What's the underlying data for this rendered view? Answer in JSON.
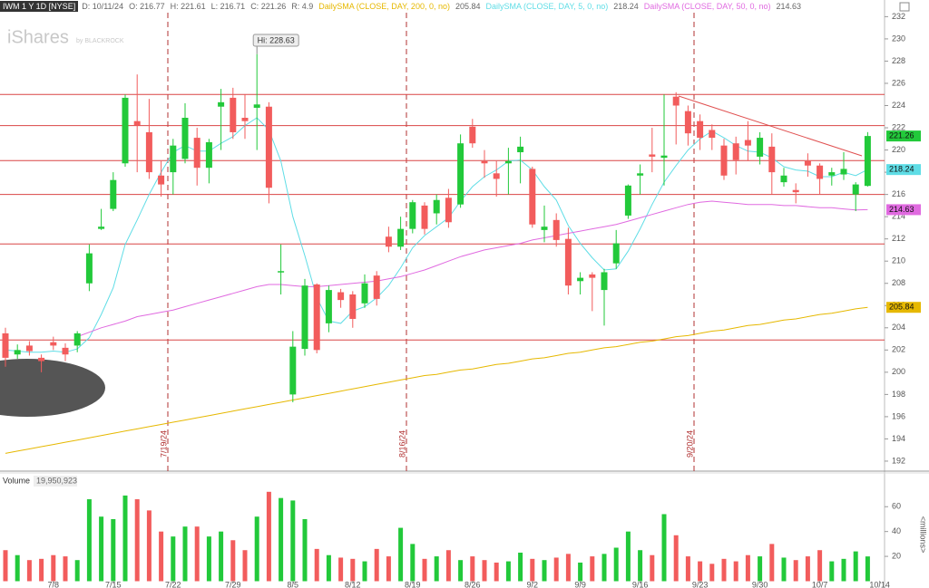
{
  "chart_data": {
    "type": "candlestick",
    "header": {
      "symbol": "IWM 1 Y 1D [NYSE]",
      "items": [
        "D: 10/11/24",
        "O: 216.77",
        "H: 221.61",
        "L: 216.71",
        "C: 221.26",
        "R: 4.9"
      ]
    },
    "watermark": [
      "iShares",
      "by BLACKROCK"
    ],
    "categories": [
      null,
      null,
      null,
      null,
      "7/8",
      null,
      null,
      null,
      null,
      "7/15",
      null,
      null,
      null,
      null,
      "7/22",
      null,
      null,
      null,
      null,
      "7/29",
      null,
      null,
      null,
      null,
      "8/5",
      null,
      null,
      null,
      null,
      "8/12",
      null,
      null,
      null,
      null,
      "8/19",
      null,
      null,
      null,
      null,
      "8/26",
      null,
      null,
      null,
      null,
      "9/2",
      null,
      null,
      null,
      "9/9",
      null,
      null,
      null,
      null,
      "9/16",
      null,
      null,
      null,
      null,
      "9/23",
      null,
      null,
      null,
      null,
      "9/30",
      null,
      null,
      null,
      null,
      "10/7",
      null,
      null,
      null,
      null,
      "10/14"
    ],
    "open": [
      203.5,
      201.6,
      202.4,
      201.3,
      202.7,
      202.2,
      202.4,
      208.0,
      212.9,
      214.7,
      218.8,
      222.6,
      221.6,
      217.7,
      218.0,
      219.2,
      221.1,
      218.4,
      223.9,
      224.7,
      222.9,
      223.8,
      223.9,
      209.0,
      198.0,
      202.1,
      207.9,
      204.4,
      207.2,
      207.0,
      206.2,
      208.7,
      212.2,
      211.3,
      212.9,
      215.0,
      214.3,
      215.7,
      215.1,
      222.1,
      219.0,
      217.9,
      218.8,
      219.8,
      218.3,
      212.8,
      213.7,
      212.0,
      208.2,
      208.8,
      207.4,
      209.8,
      214.1,
      217.7,
      219.6,
      219.3,
      224.8,
      223.5,
      222.6,
      221.8,
      220.4,
      220.6,
      220.9,
      219.4,
      220.3,
      217.1,
      216.4,
      219.0,
      218.6,
      217.7,
      217.8,
      216.0,
      216.77,
      null
    ],
    "high": [
      204.0,
      202.5,
      202.8,
      201.6,
      203.2,
      202.6,
      203.7,
      211.5,
      214.7,
      218.0,
      225.0,
      226.8,
      224.6,
      219.0,
      221.0,
      224.2,
      222.0,
      221.0,
      225.5,
      225.6,
      225.0,
      228.63,
      224.3,
      211.5,
      203.7,
      208.4,
      208.0,
      207.8,
      207.5,
      207.3,
      208.8,
      209.1,
      213.1,
      214.0,
      215.5,
      215.3,
      216.0,
      216.5,
      221.4,
      222.8,
      220.0,
      219.0,
      220.2,
      221.2,
      218.5,
      215.0,
      214.3,
      213.0,
      209.0,
      209.0,
      209.3,
      212.8,
      216.9,
      218.7,
      222.0,
      225.0,
      225.2,
      224.0,
      223.2,
      222.3,
      221.0,
      221.2,
      222.6,
      221.6,
      221.5,
      218.4,
      217.0,
      219.7,
      218.8,
      218.4,
      219.8,
      217.1,
      221.61,
      null
    ],
    "low": [
      200.5,
      201.2,
      201.5,
      200.0,
      202.0,
      201.0,
      201.8,
      207.3,
      212.8,
      214.5,
      218.5,
      218.0,
      217.4,
      215.8,
      216.0,
      218.8,
      216.8,
      217.0,
      220.0,
      221.0,
      221.0,
      220.0,
      215.2,
      207.0,
      197.3,
      201.5,
      201.7,
      203.6,
      205.8,
      204.0,
      205.8,
      206.0,
      210.8,
      211.0,
      212.5,
      212.4,
      213.3,
      213.0,
      214.8,
      220.2,
      217.5,
      215.8,
      216.0,
      217.0,
      213.0,
      211.7,
      211.3,
      207.0,
      207.0,
      205.5,
      204.2,
      209.3,
      213.8,
      216.0,
      218.0,
      216.8,
      220.5,
      220.4,
      220.0,
      220.0,
      217.3,
      217.8,
      219.0,
      218.7,
      216.0,
      216.7,
      215.2,
      217.6,
      216.0,
      216.8,
      217.3,
      214.5,
      216.71,
      null
    ],
    "close": [
      201.3,
      202.0,
      201.9,
      201.0,
      202.4,
      201.6,
      203.5,
      210.7,
      213.1,
      217.3,
      224.7,
      222.2,
      218.0,
      216.9,
      220.4,
      222.9,
      218.4,
      220.7,
      224.3,
      221.6,
      222.6,
      224.1,
      216.6,
      209.1,
      202.3,
      207.8,
      202.0,
      207.4,
      206.5,
      204.8,
      208.0,
      206.6,
      211.3,
      212.9,
      215.3,
      212.9,
      215.5,
      213.5,
      220.6,
      220.6,
      218.8,
      217.4,
      219.0,
      220.3,
      213.3,
      213.1,
      211.9,
      207.8,
      208.5,
      208.5,
      209.0,
      211.6,
      216.8,
      217.9,
      219.4,
      219.5,
      224.0,
      221.5,
      221.1,
      221.1,
      217.7,
      219.1,
      220.4,
      221.1,
      218.0,
      217.7,
      216.2,
      218.6,
      217.4,
      218.0,
      218.3,
      216.9,
      221.26,
      null
    ],
    "up_color": "#22c93a",
    "down_color": "#f25c5c",
    "ylim": [
      191.1,
      233.5
    ],
    "yticks": [
      192,
      194,
      196,
      198,
      200,
      202,
      204,
      206,
      208,
      210,
      212,
      214,
      216,
      218,
      220,
      222,
      224,
      226,
      228,
      230,
      232
    ],
    "grid": false,
    "levels": [
      225.0,
      222.2,
      219.05,
      216.0,
      211.55,
      202.9
    ],
    "level_color": "#d94545",
    "markers": [
      "7/19/24",
      "8/16/24",
      "9/20/24"
    ],
    "annotations": [
      "Hi: 228.63"
    ],
    "series": [
      {
        "name": "DailySMA (CLOSE, DAY, 200, 0, no)",
        "color": "#e6b800",
        "values": [
          192.7,
          192.9,
          193.1,
          193.3,
          193.5,
          193.7,
          193.9,
          194.1,
          194.3,
          194.5,
          194.7,
          194.9,
          195.1,
          195.3,
          195.5,
          195.7,
          195.9,
          196.1,
          196.3,
          196.5,
          196.7,
          196.9,
          197.1,
          197.3,
          197.5,
          197.7,
          197.9,
          198.1,
          198.3,
          198.5,
          198.7,
          198.9,
          199.1,
          199.3,
          199.5,
          199.7,
          199.8,
          200.0,
          200.2,
          200.3,
          200.5,
          200.7,
          200.8,
          201.0,
          201.2,
          201.3,
          201.5,
          201.7,
          201.8,
          202.0,
          202.2,
          202.3,
          202.5,
          202.7,
          202.8,
          203.0,
          203.2,
          203.3,
          203.5,
          203.7,
          203.8,
          204.0,
          204.2,
          204.3,
          204.5,
          204.7,
          204.8,
          205.0,
          205.2,
          205.3,
          205.5,
          205.7,
          205.84,
          null
        ]
      },
      {
        "name": "DailySMA (CLOSE, DAY, 5, 0, no)",
        "color": "#5fdde6",
        "values": [
          202.0,
          201.9,
          201.8,
          201.8,
          201.9,
          201.8,
          202.1,
          203.1,
          205.2,
          207.6,
          211.5,
          213.7,
          216.0,
          218.0,
          219.8,
          220.4,
          219.9,
          219.9,
          220.6,
          221.2,
          222.2,
          222.9,
          221.8,
          219.0,
          214.0,
          210.5,
          206.7,
          204.6,
          204.4,
          205.5,
          205.9,
          206.7,
          207.8,
          209.4,
          211.2,
          212.3,
          213.1,
          213.9,
          215.4,
          216.7,
          217.6,
          218.2,
          219.0,
          219.1,
          218.2,
          216.7,
          215.5,
          213.2,
          211.6,
          210.3,
          209.2,
          209.3,
          210.9,
          212.9,
          215.1,
          217.1,
          218.6,
          220.0,
          221.0,
          221.7,
          221.1,
          220.4,
          219.9,
          219.8,
          219.3,
          218.5,
          218.2,
          218.1,
          217.6,
          217.6,
          218.0,
          217.7,
          218.24,
          null
        ]
      },
      {
        "name": "DailySMA (CLOSE, DAY, 50, 0, no)",
        "color": "#e06ae0",
        "values": [
          null,
          null,
          null,
          null,
          null,
          null,
          203.2,
          203.6,
          204.0,
          204.3,
          204.6,
          205.0,
          205.2,
          205.4,
          205.6,
          205.9,
          206.2,
          206.5,
          206.8,
          207.1,
          207.4,
          207.7,
          207.9,
          207.9,
          207.8,
          207.7,
          207.7,
          207.8,
          207.9,
          208.0,
          208.1,
          208.2,
          208.4,
          208.6,
          208.9,
          209.2,
          209.6,
          210.0,
          210.4,
          210.7,
          211.0,
          211.2,
          211.4,
          211.6,
          211.9,
          212.1,
          212.3,
          212.5,
          212.7,
          212.9,
          213.1,
          213.3,
          213.6,
          213.9,
          214.2,
          214.5,
          214.8,
          215.1,
          215.3,
          215.4,
          215.3,
          215.2,
          215.1,
          215.1,
          215.1,
          215.0,
          215.0,
          214.9,
          214.8,
          214.8,
          214.7,
          214.6,
          214.63,
          null
        ]
      }
    ],
    "volume": {
      "label": "Volume",
      "axis_label": "<millions>",
      "value_label": "19,950,923",
      "values": [
        25,
        21,
        17,
        18,
        21,
        20,
        17,
        66,
        52,
        50,
        69,
        66,
        57,
        40,
        36,
        44,
        44,
        36,
        40,
        33,
        25,
        52,
        72,
        67,
        65,
        50,
        26,
        21,
        19,
        18,
        16,
        26,
        20,
        43,
        30,
        18,
        20,
        25,
        17,
        20,
        17,
        15,
        16,
        23,
        18,
        17,
        19,
        22,
        15,
        20,
        22,
        27,
        40,
        25,
        21,
        54,
        37,
        20,
        16,
        14,
        18,
        16,
        21,
        20,
        30,
        19,
        17,
        20,
        25,
        16,
        18,
        24,
        19.950923,
        null
      ],
      "ylim": [
        0,
        85
      ],
      "yticks": [
        20,
        40,
        60
      ]
    }
  }
}
